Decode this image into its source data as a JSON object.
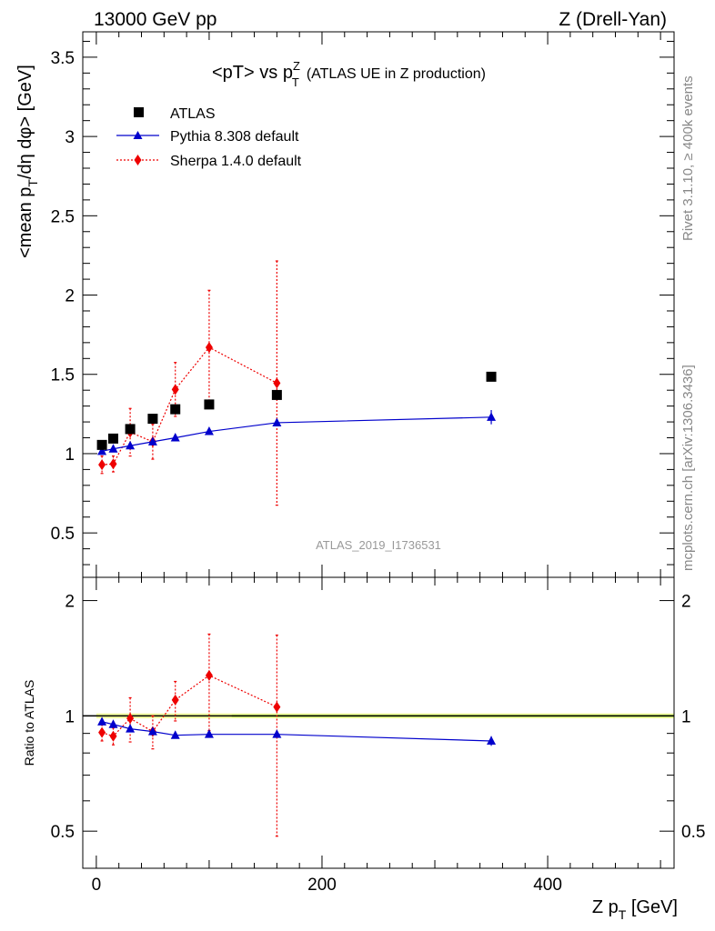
{
  "header": {
    "left": "13000 GeV pp",
    "right": "Z (Drell-Yan)"
  },
  "side_labels": {
    "rivet": "Rivet 3.1.10, ≥ 400k events",
    "mcplots": "mcplots.cern.ch [arXiv:1306.3436]"
  },
  "chart_data": [
    {
      "type": "scatter",
      "panel": "main",
      "title": "<pT> vs p",
      "title_sup": "Z",
      "title_sub": "T",
      "title_suffix": "(ATLAS UE in Z production)",
      "ylabel_pre": "<mean p",
      "ylabel_sub": "T",
      "ylabel_post": "/dη dφ> [GeV]",
      "watermark": "ATLAS_2019_I1736531",
      "xlim": [
        -12,
        512
      ],
      "ylim": [
        0.22,
        3.66
      ],
      "yticks": [
        0.5,
        1,
        1.5,
        2,
        2.5,
        3,
        3.5
      ],
      "ytick_labels": [
        "0.5",
        "1",
        "1.5",
        "2",
        "2.5",
        "3",
        "3.5"
      ],
      "legend": [
        "ATLAS",
        "Pythia 8.308 default",
        "Sherpa 1.4.0 default"
      ],
      "series": [
        {
          "name": "ATLAS",
          "color": "#000000",
          "marker": "square",
          "line": "none",
          "x": [
            5,
            15,
            30,
            50,
            70,
            100,
            160,
            350
          ],
          "y": [
            1.055,
            1.095,
            1.155,
            1.22,
            1.28,
            1.31,
            1.37,
            1.485
          ],
          "err": [
            0,
            0,
            0,
            0,
            0,
            0,
            0,
            0
          ]
        },
        {
          "name": "Pythia 8.308 default",
          "color": "#0000cc",
          "marker": "triangle",
          "line": "solid",
          "x": [
            5,
            15,
            30,
            50,
            70,
            100,
            160,
            350
          ],
          "y": [
            1.015,
            1.03,
            1.05,
            1.075,
            1.1,
            1.14,
            1.195,
            1.23
          ],
          "err": [
            0.01,
            0.01,
            0.012,
            0.012,
            0.012,
            0.015,
            0.018,
            0.045
          ]
        },
        {
          "name": "Sherpa 1.4.0 default",
          "color": "#ee0000",
          "marker": "diamond",
          "line": "dotted",
          "x": [
            5,
            15,
            30,
            50,
            70,
            100,
            160
          ],
          "y": [
            0.93,
            0.935,
            1.135,
            1.075,
            1.405,
            1.67,
            1.445
          ],
          "err": [
            0.055,
            0.05,
            0.15,
            0.11,
            0.17,
            0.36,
            0.77
          ]
        }
      ]
    },
    {
      "type": "scatter",
      "panel": "ratio",
      "ylabel": "Ratio to ATLAS",
      "xlabel_pre": "Z p",
      "xlabel_sub": "T",
      "xlabel_post": " [GeV]",
      "xticks": [
        0,
        200,
        400
      ],
      "xtick_labels": [
        "0",
        "200",
        "400"
      ],
      "yticks": [
        0.5,
        1,
        2
      ],
      "ytick_labels": [
        "0.5",
        "1",
        "2"
      ],
      "ylim": [
        0.4,
        2.3
      ],
      "yscale": "log",
      "band": [
        0.985,
        1.015
      ],
      "series": [
        {
          "name": "Pythia 8.308 default",
          "color": "#0000cc",
          "marker": "triangle",
          "line": "solid",
          "x": [
            5,
            15,
            30,
            50,
            70,
            100,
            160,
            350
          ],
          "y": [
            0.965,
            0.95,
            0.925,
            0.91,
            0.89,
            0.895,
            0.895,
            0.86
          ],
          "err": [
            0.012,
            0.012,
            0.012,
            0.012,
            0.012,
            0.012,
            0.015,
            0.025
          ]
        },
        {
          "name": "Sherpa 1.4.0 default",
          "color": "#ee0000",
          "marker": "diamond",
          "line": "dotted",
          "x": [
            5,
            15,
            30,
            50,
            70,
            100,
            160
          ],
          "y": [
            0.905,
            0.885,
            0.985,
            0.91,
            1.1,
            1.275,
            1.055
          ],
          "err": [
            0.045,
            0.045,
            0.13,
            0.09,
            0.13,
            0.36,
            0.57
          ]
        }
      ]
    }
  ]
}
